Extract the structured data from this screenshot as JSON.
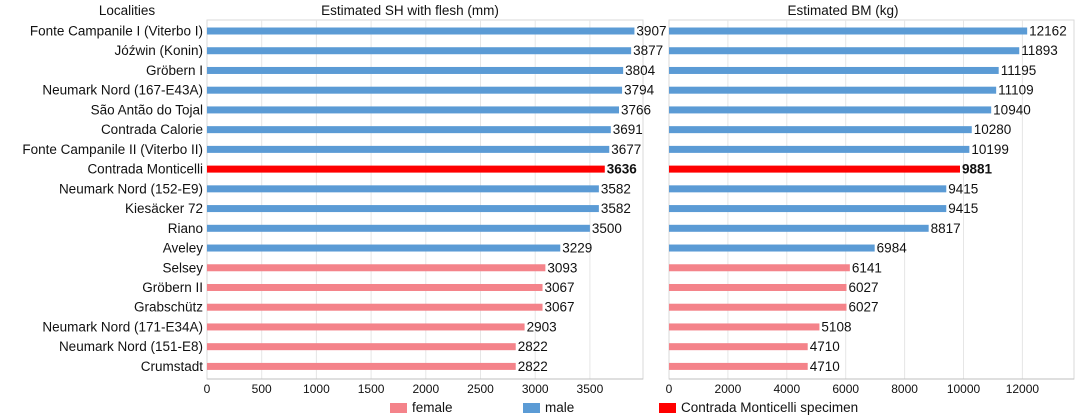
{
  "chart_data": {
    "type": "bar",
    "orientation": "horizontal",
    "categories_header": "Localities",
    "categories": [
      "Fonte Campanile I (Viterbo I)",
      "Jóźwin (Konin)",
      "Gröbern I",
      "Neumark Nord (167-E43A)",
      "São Antão do Tojal",
      "Contrada Calorie",
      "Fonte Campanile II (Viterbo II)",
      "Contrada Monticelli",
      "Neumark Nord (152-E9)",
      "Kiesäcker 72",
      "Riano",
      "Aveley",
      "Selsey",
      "Gröbern II",
      "Grabschütz",
      "Neumark Nord (171-E34A)",
      "Neumark Nord (151-E8)",
      "Crumstadt"
    ],
    "groups": [
      "male",
      "male",
      "male",
      "male",
      "male",
      "male",
      "male",
      "specimen",
      "male",
      "male",
      "male",
      "male",
      "female",
      "female",
      "female",
      "female",
      "female",
      "female"
    ],
    "panels": [
      {
        "title": "Estimated SH with flesh (mm)",
        "values": [
          3907,
          3877,
          3804,
          3794,
          3766,
          3691,
          3677,
          3636,
          3582,
          3582,
          3500,
          3229,
          3093,
          3067,
          3067,
          2903,
          2822,
          2822
        ],
        "xlim": [
          0,
          4000
        ],
        "ticks": [
          0,
          500,
          1000,
          1500,
          2000,
          2500,
          3000,
          3500
        ]
      },
      {
        "title": "Estimated BM (kg)",
        "values": [
          12162,
          11893,
          11195,
          11109,
          10940,
          10280,
          10199,
          9881,
          9415,
          9415,
          8817,
          6984,
          6141,
          6027,
          6027,
          5108,
          4710,
          4710
        ],
        "xlim": [
          0,
          13500
        ],
        "ticks": [
          0,
          2000,
          4000,
          6000,
          8000,
          10000,
          12000
        ]
      }
    ],
    "legend": [
      {
        "key": "female",
        "label": "female",
        "color": "#f4838a"
      },
      {
        "key": "male",
        "label": "male",
        "color": "#5b9bd5"
      },
      {
        "key": "specimen",
        "label": "Contrada Monticelli specimen",
        "color": "#ff0000"
      }
    ],
    "legend_position": "bottom",
    "grid": true
  }
}
